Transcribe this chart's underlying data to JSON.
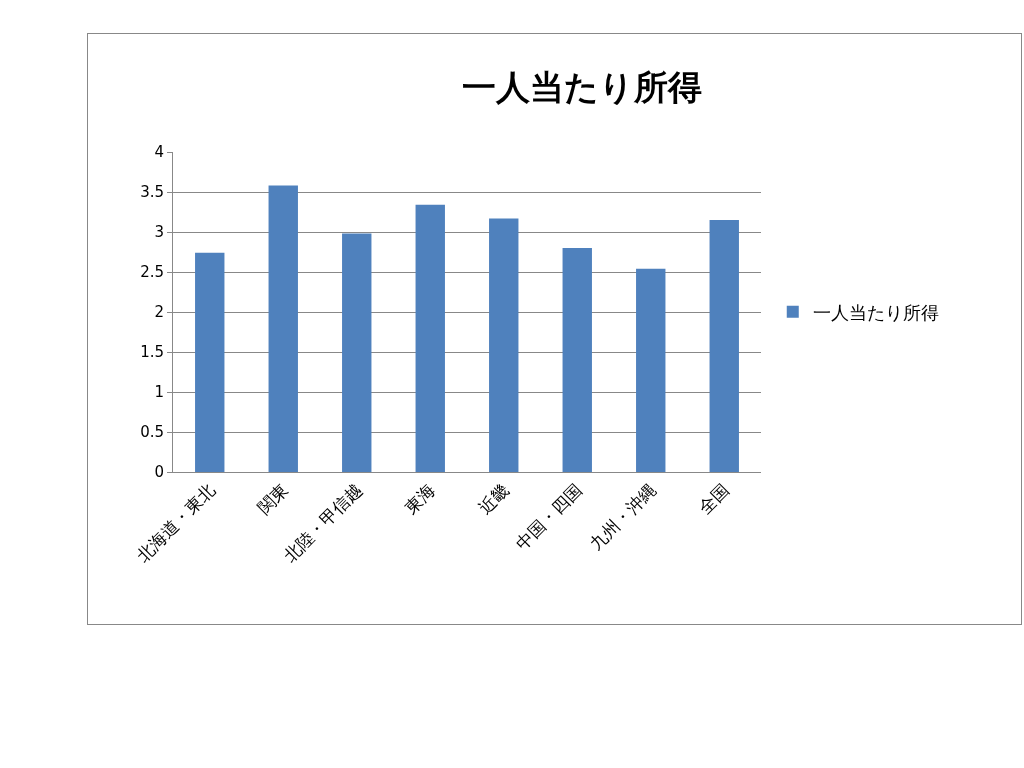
{
  "chart_data": {
    "type": "bar",
    "title": "一人当たり所得",
    "categories": [
      "北海道・東北",
      "関東",
      "北陸・甲信越",
      "東海",
      "近畿",
      "中国・四国",
      "九州・沖縄",
      "全国"
    ],
    "series": [
      {
        "name": "一人当たり所得",
        "color": "#4f81bd",
        "values": [
          2.74,
          3.58,
          2.98,
          3.34,
          3.17,
          2.8,
          2.54,
          3.15
        ]
      }
    ],
    "ylim": [
      0,
      4
    ],
    "yticks": [
      0,
      0.5,
      1,
      1.5,
      2,
      2.5,
      3,
      3.5,
      4
    ],
    "grid": "y",
    "legend": "right"
  }
}
